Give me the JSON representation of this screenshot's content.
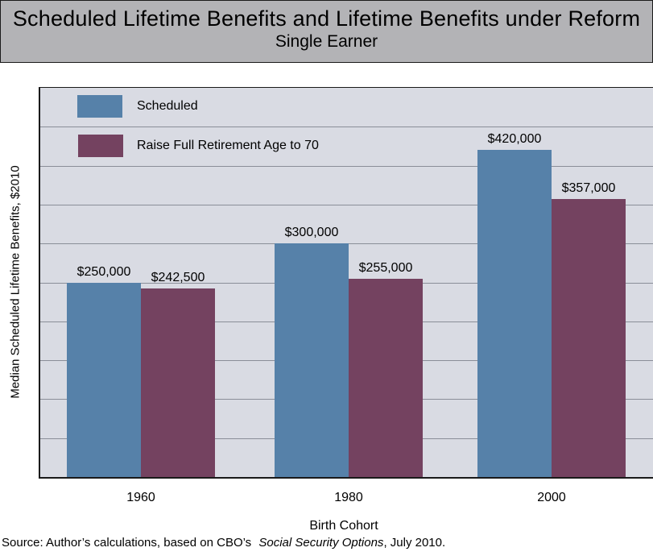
{
  "title": {
    "line1": "Scheduled Lifetime Benefits and Lifetime Benefits under Reform",
    "line2": "Single Earner"
  },
  "y_axis_label": "Median Scheduled Lifetime Benefits, $2010",
  "x_axis_label": "Birth Cohort",
  "source": {
    "prefix": "Source: Author’s calculations, based on CBO’s ",
    "italic": "Social Security Options",
    "suffix": ", July 2010."
  },
  "chart_data": {
    "type": "bar",
    "categories": [
      "1960",
      "1980",
      "2000"
    ],
    "series": [
      {
        "name": "Scheduled",
        "color": "#5681a9",
        "values": [
          250000,
          300000,
          420000
        ],
        "labels": [
          "$250,000",
          "$300,000",
          "$420,000"
        ]
      },
      {
        "name": "Raise Full Retirement Age to 70",
        "color": "#744260",
        "values": [
          242500,
          255000,
          357000
        ],
        "labels": [
          "$242,500",
          "$255,000",
          "$357,000"
        ]
      }
    ],
    "title": "Scheduled Lifetime Benefits and Lifetime Benefits under Reform",
    "subtitle": "Single Earner",
    "xlabel": "Birth Cohort",
    "ylabel": "Median Scheduled Lifetime Benefits, $2010",
    "ylim": [
      0,
      500000
    ],
    "gridline_interval": 50000,
    "grid": true,
    "tick_labels_on_y_axis": false,
    "legend_position": "top-left-inside",
    "colors": {
      "plot_background": "#d9dbe3",
      "gridline": "#8a8e98",
      "title_band_background": "#b3b3b6",
      "border": "#1a1a1a"
    }
  }
}
